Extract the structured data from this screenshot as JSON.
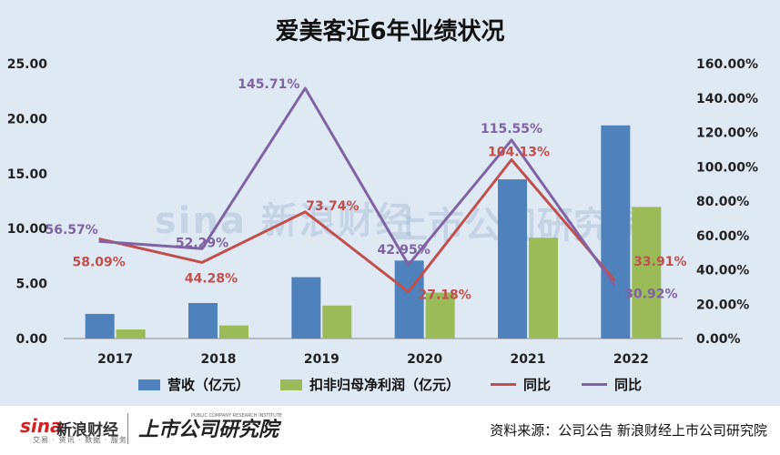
{
  "chart_data": {
    "type": "bar",
    "title": "爱美客近6年业绩状况",
    "categories": [
      "2017",
      "2018",
      "2019",
      "2020",
      "2021",
      "2022"
    ],
    "left_axis": {
      "ylim": [
        0,
        25
      ],
      "ticks": [
        "0.00",
        "5.00",
        "10.00",
        "15.00",
        "20.00",
        "25.00"
      ]
    },
    "right_axis": {
      "ylim": [
        0,
        160
      ],
      "ticks": [
        "0.00%",
        "20.00%",
        "40.00%",
        "60.00%",
        "80.00%",
        "100.00%",
        "120.00%",
        "140.00%",
        "160.00%"
      ]
    },
    "series": [
      {
        "name": "营收（亿元）",
        "kind": "bar",
        "axis": "left",
        "color": "#4f81bd",
        "values": [
          2.24,
          3.23,
          5.58,
          7.09,
          14.48,
          19.39
        ]
      },
      {
        "name": "扣非归母净利润（亿元）",
        "kind": "bar",
        "axis": "left",
        "color": "#9bbb59",
        "values": [
          0.82,
          1.19,
          3.0,
          4.18,
          9.17,
          11.97
        ]
      },
      {
        "name": "同比",
        "kind": "line",
        "axis": "right",
        "color": "#c0504d",
        "values": [
          58.09,
          44.28,
          73.74,
          27.18,
          104.13,
          33.91
        ],
        "labels": [
          "58.09%",
          "44.28%",
          "73.74%",
          "27.18%",
          "104.13%",
          "33.91%"
        ]
      },
      {
        "name": "同比",
        "kind": "line",
        "axis": "right",
        "color": "#8064a2",
        "values": [
          56.57,
          52.29,
          145.71,
          42.95,
          115.55,
          30.92
        ],
        "labels": [
          "56.57%",
          "52.29%",
          "145.71%",
          "42.95%",
          "115.55%",
          "30.92%"
        ]
      }
    ],
    "legend": "bottom",
    "grid": false
  },
  "watermark": {
    "sina": "sina 新浪财经",
    "sina_sub": "资讯 · 数据 · 服务",
    "inst": "上市公司研究院"
  },
  "footer": {
    "logo_sina": "sina",
    "logo_xinlang": "新浪财经",
    "logo_sub": "交易 · 资讯 · 数据 · 服务",
    "logo_inst": "上市公司研究院",
    "logo_inst_en": "PUBLIC COMPANY RESEARCH INSTITUTE",
    "source": "资料来源：公司公告 新浪财经上市公司研究院"
  }
}
